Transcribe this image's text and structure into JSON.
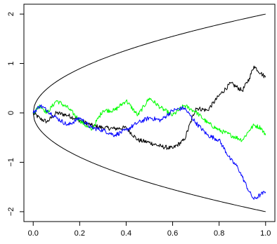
{
  "chart_data": {
    "type": "line",
    "title": "",
    "xlabel": "",
    "ylabel": "",
    "xlim": [
      -0.04,
      1.04
    ],
    "ylim": [
      -2.2,
      2.2
    ],
    "xticks": [
      0.0,
      0.2,
      0.4,
      0.6,
      0.8,
      1.0
    ],
    "xtick_labels": [
      "0.0",
      "0.2",
      "0.4",
      "0.6",
      "0.8",
      "1.0"
    ],
    "yticks": [
      -2,
      -1,
      0,
      1,
      2
    ],
    "ytick_labels": [
      "−2",
      "−1",
      "0",
      "1",
      "2"
    ],
    "grid": false,
    "legend": "none",
    "boundary_curves": [
      {
        "formula": "y = 2*sqrt(x)",
        "color": "#000000"
      },
      {
        "formula": "y = -2*sqrt(x)",
        "color": "#000000"
      }
    ],
    "series": [
      {
        "color": "#000000",
        "x": [
          0.0,
          0.03,
          0.06,
          0.1,
          0.15,
          0.2,
          0.25,
          0.3,
          0.35,
          0.4,
          0.45,
          0.5,
          0.55,
          0.6,
          0.65,
          0.7,
          0.75,
          0.8,
          0.85,
          0.9,
          0.93,
          0.95,
          0.98,
          1.0
        ],
        "y": [
          0.0,
          -0.12,
          -0.18,
          0.0,
          -0.05,
          -0.15,
          -0.25,
          -0.3,
          -0.32,
          -0.3,
          -0.55,
          -0.6,
          -0.68,
          -0.72,
          -0.55,
          0.1,
          0.05,
          0.35,
          0.6,
          0.45,
          0.7,
          0.95,
          0.8,
          0.72
        ]
      },
      {
        "color": "#00ff00",
        "x": [
          0.0,
          0.03,
          0.06,
          0.1,
          0.15,
          0.2,
          0.25,
          0.3,
          0.35,
          0.4,
          0.45,
          0.5,
          0.55,
          0.6,
          0.65,
          0.7,
          0.75,
          0.8,
          0.85,
          0.9,
          0.93,
          0.95,
          0.98,
          1.0
        ],
        "y": [
          0.0,
          0.15,
          0.0,
          0.25,
          0.1,
          -0.15,
          -0.35,
          0.05,
          0.05,
          0.25,
          -0.05,
          0.3,
          0.1,
          -0.05,
          0.15,
          0.02,
          -0.2,
          -0.35,
          -0.45,
          -0.55,
          -0.35,
          -0.25,
          -0.3,
          -0.45
        ]
      },
      {
        "color": "#0000ff",
        "x": [
          0.0,
          0.03,
          0.06,
          0.1,
          0.15,
          0.2,
          0.25,
          0.3,
          0.35,
          0.4,
          0.45,
          0.5,
          0.55,
          0.6,
          0.65,
          0.7,
          0.75,
          0.8,
          0.85,
          0.88,
          0.9,
          0.93,
          0.95,
          0.98,
          1.0
        ],
        "y": [
          0.0,
          0.15,
          0.05,
          -0.1,
          -0.25,
          -0.1,
          -0.3,
          -0.35,
          -0.45,
          -0.35,
          -0.2,
          -0.1,
          -0.15,
          0.05,
          0.1,
          -0.2,
          -0.45,
          -0.55,
          -0.95,
          -1.1,
          -1.3,
          -1.6,
          -1.75,
          -1.65,
          -1.6
        ]
      }
    ]
  }
}
